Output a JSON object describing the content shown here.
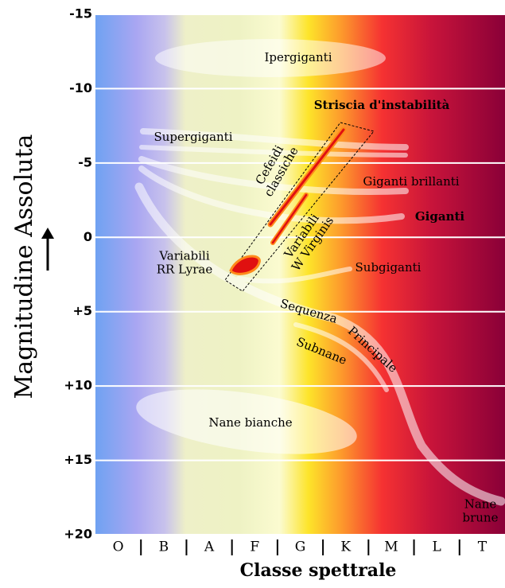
{
  "axis": {
    "x_label": "Classe spettrale",
    "y_label": "Magnitudine Assoluta",
    "ylim": [
      -15,
      20
    ],
    "yticks": [
      -15,
      -10,
      -5,
      0,
      {
        "value": 5,
        "label": "+5"
      },
      {
        "value": 10,
        "label": "+10"
      },
      {
        "value": 15,
        "label": "+15"
      },
      {
        "value": 20,
        "label": "+20"
      }
    ],
    "categories": [
      "O",
      "B",
      "A",
      "F",
      "G",
      "K",
      "M",
      "L",
      "T"
    ]
  },
  "regions": [
    {
      "lines": [
        "Ipergiganti"
      ]
    },
    {
      "lines": [
        "Striscia d'instabilità"
      ]
    },
    {
      "lines": [
        "Supergiganti"
      ]
    },
    {
      "lines": [
        "Cefeidi",
        "classiche"
      ]
    },
    {
      "lines": [
        "Giganti brillanti"
      ]
    },
    {
      "lines": [
        "Giganti"
      ]
    },
    {
      "lines": [
        "Variabili",
        "W Virginis"
      ]
    },
    {
      "lines": [
        "Variabili",
        "RR Lyrae"
      ]
    },
    {
      "lines": [
        "Subgiganti"
      ]
    },
    {
      "lines": [
        "Sequenza"
      ]
    },
    {
      "lines": [
        "Principale"
      ]
    },
    {
      "lines": [
        "Subnane"
      ]
    },
    {
      "lines": [
        "Nane bianche"
      ]
    },
    {
      "lines": [
        "Nane",
        "brune"
      ]
    }
  ]
}
